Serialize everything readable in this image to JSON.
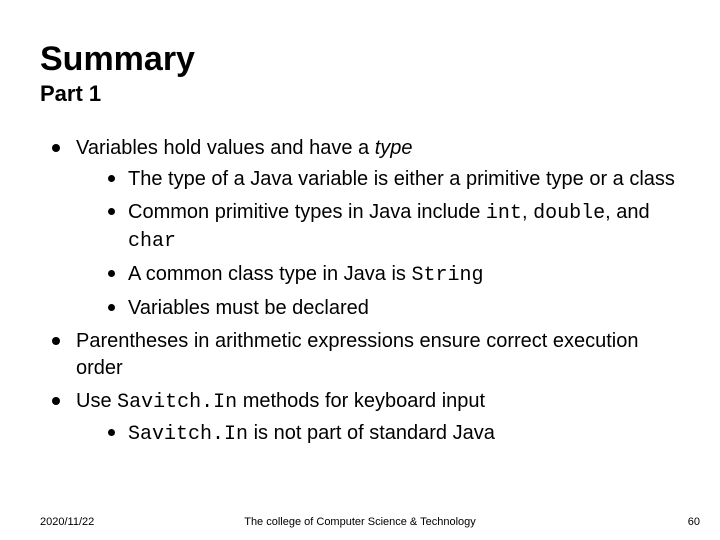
{
  "title": "Summary",
  "subtitle": "Part 1",
  "title_color": "#000000",
  "title_fontsize": 34,
  "subtitle_fontsize": 22,
  "body_fontsize": 20,
  "bullet_color": "#000000",
  "background_color": "#ffffff",
  "mono_font": "Courier New",
  "bullets": {
    "b1": {
      "pre": "Variables hold values and have a ",
      "em": "type",
      "sub": {
        "s1a": "The type of a Java variable is either a primitive type or a class",
        "s2_pre": "Common primitive types in Java include ",
        "s2_code1": "int",
        "s2_mid1": ", ",
        "s2_code2": "double",
        "s2_mid2": ", and ",
        "s2_code3": "char",
        "s3_pre": "A common class type in Java is ",
        "s3_code": "String",
        "s4": "Variables must be declared"
      }
    },
    "b2": "Parentheses in arithmetic expressions ensure correct execution order",
    "b3": {
      "pre": "Use ",
      "code": "Savitch.In",
      "post": " methods for keyboard input",
      "sub": {
        "s1_code": "Savitch.In",
        "s1_post": " is not part of standard Java"
      }
    }
  },
  "footer": {
    "date": "2020/11/22",
    "center": "The college of Computer Science & Technology",
    "page": "60",
    "fontsize": 11
  }
}
